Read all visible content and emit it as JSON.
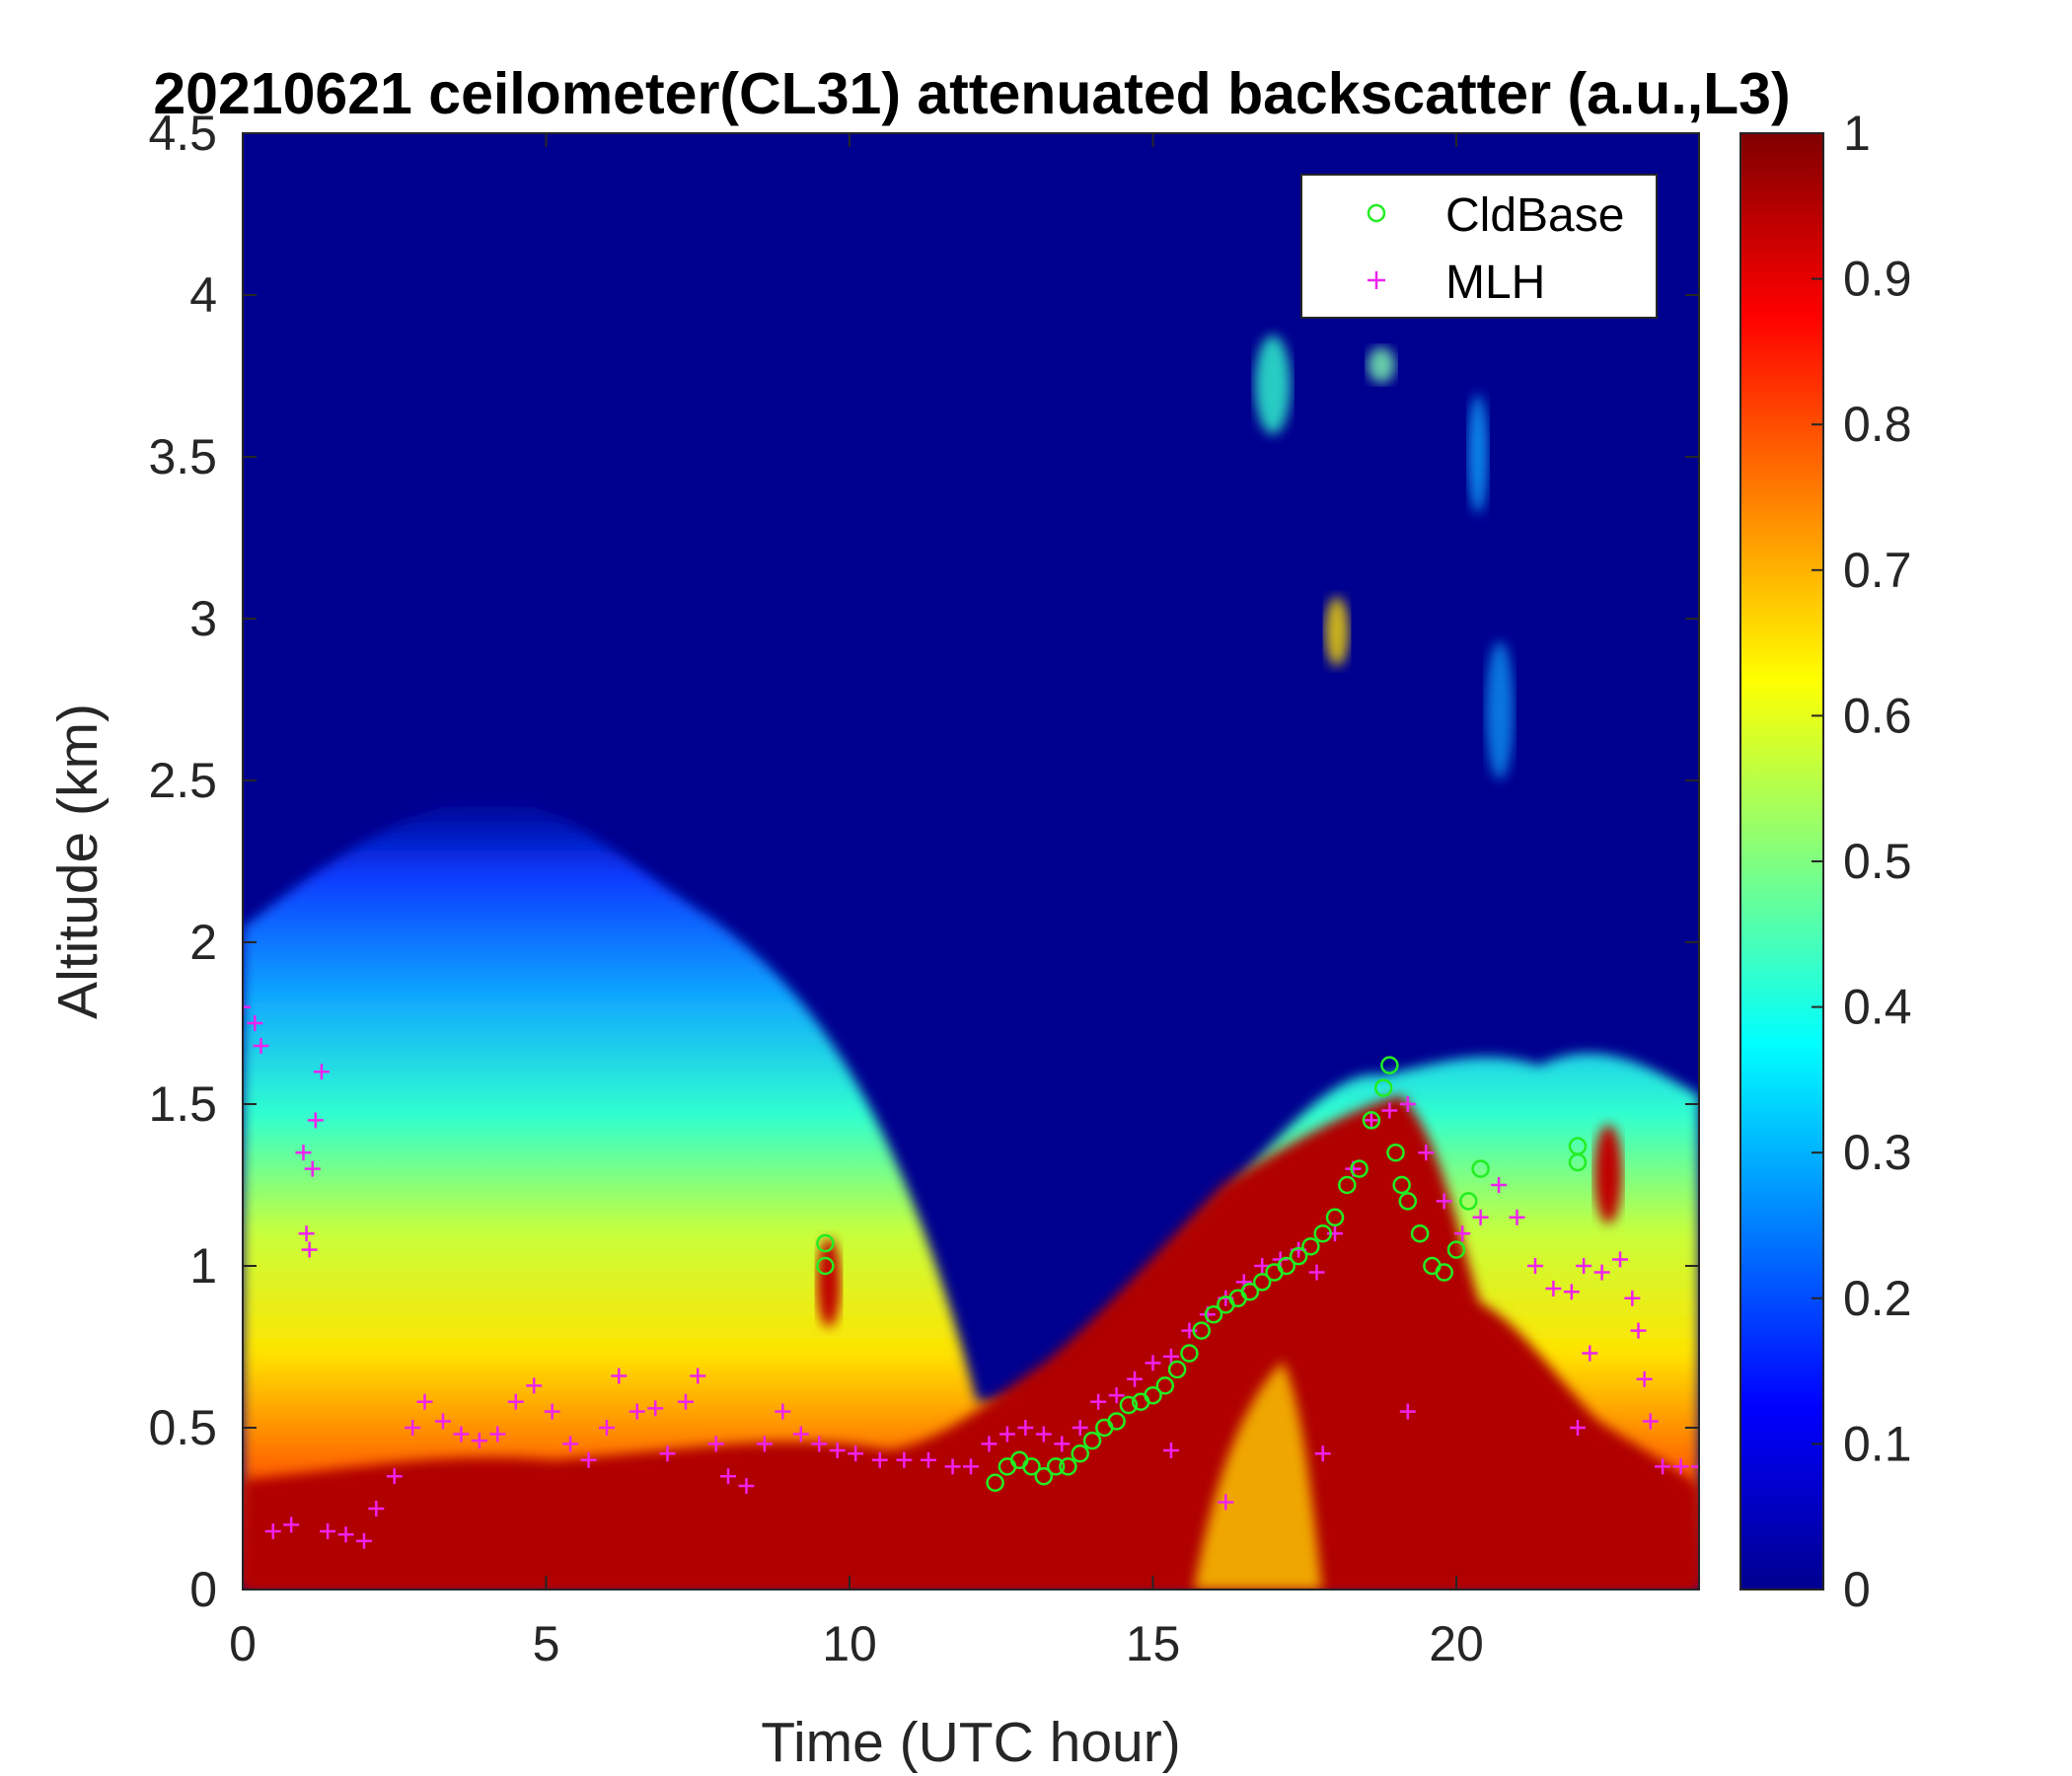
{
  "chart_data": {
    "type": "heatmap",
    "title": "20210621 ceilometer(CL31) attenuated backscatter (a.u.,L3)",
    "xlabel": "Time (UTC hour)",
    "ylabel": "Altitude (km)",
    "xlim": [
      0,
      24
    ],
    "ylim": [
      0,
      4.5
    ],
    "x_ticks": [
      "0",
      "5",
      "10",
      "15",
      "20"
    ],
    "y_ticks": [
      "0",
      "0.5",
      "1",
      "1.5",
      "2",
      "2.5",
      "3",
      "3.5",
      "4",
      "4.5"
    ],
    "colorbar": {
      "colormap": "jet",
      "range": [
        0,
        1
      ],
      "ticks": [
        "0",
        "0.1",
        "0.2",
        "0.3",
        "0.4",
        "0.5",
        "0.6",
        "0.7",
        "0.8",
        "0.9",
        "1"
      ]
    },
    "legend_position": "top-right",
    "series": [
      {
        "name": "CldBase",
        "marker": "circle",
        "color": "#22ee22",
        "points": [
          [
            9.6,
            1.0
          ],
          [
            9.6,
            1.07
          ],
          [
            12.4,
            0.33
          ],
          [
            12.6,
            0.38
          ],
          [
            12.8,
            0.4
          ],
          [
            13.0,
            0.38
          ],
          [
            13.2,
            0.35
          ],
          [
            13.4,
            0.38
          ],
          [
            13.6,
            0.38
          ],
          [
            13.8,
            0.42
          ],
          [
            14.0,
            0.46
          ],
          [
            14.2,
            0.5
          ],
          [
            14.4,
            0.52
          ],
          [
            14.6,
            0.57
          ],
          [
            14.8,
            0.58
          ],
          [
            15.0,
            0.6
          ],
          [
            15.2,
            0.63
          ],
          [
            15.4,
            0.68
          ],
          [
            15.6,
            0.73
          ],
          [
            15.8,
            0.8
          ],
          [
            16.0,
            0.85
          ],
          [
            16.2,
            0.88
          ],
          [
            16.4,
            0.9
          ],
          [
            16.6,
            0.92
          ],
          [
            16.8,
            0.95
          ],
          [
            17.0,
            0.98
          ],
          [
            17.2,
            1.0
          ],
          [
            17.4,
            1.03
          ],
          [
            17.6,
            1.06
          ],
          [
            17.8,
            1.1
          ],
          [
            18.0,
            1.15
          ],
          [
            18.2,
            1.25
          ],
          [
            18.4,
            1.3
          ],
          [
            18.6,
            1.45
          ],
          [
            18.8,
            1.55
          ],
          [
            18.9,
            1.62
          ],
          [
            19.0,
            1.35
          ],
          [
            19.1,
            1.25
          ],
          [
            19.2,
            1.2
          ],
          [
            19.4,
            1.1
          ],
          [
            19.6,
            1.0
          ],
          [
            19.8,
            0.98
          ],
          [
            20.0,
            1.05
          ],
          [
            20.2,
            1.2
          ],
          [
            20.4,
            1.3
          ],
          [
            22.0,
            1.32
          ],
          [
            22.0,
            1.37
          ]
        ]
      },
      {
        "name": "MLH",
        "marker": "plus",
        "color": "#ee22ee",
        "points": [
          [
            0.0,
            1.8
          ],
          [
            0.2,
            1.75
          ],
          [
            0.3,
            1.68
          ],
          [
            0.5,
            0.18
          ],
          [
            0.8,
            0.2
          ],
          [
            1.0,
            1.35
          ],
          [
            1.05,
            1.1
          ],
          [
            1.1,
            1.05
          ],
          [
            1.15,
            1.3
          ],
          [
            1.2,
            1.45
          ],
          [
            1.3,
            1.6
          ],
          [
            1.4,
            0.18
          ],
          [
            1.7,
            0.17
          ],
          [
            2.0,
            0.15
          ],
          [
            2.2,
            0.25
          ],
          [
            2.5,
            0.35
          ],
          [
            2.8,
            0.5
          ],
          [
            3.0,
            0.58
          ],
          [
            3.3,
            0.52
          ],
          [
            3.6,
            0.48
          ],
          [
            3.9,
            0.46
          ],
          [
            4.2,
            0.48
          ],
          [
            4.5,
            0.58
          ],
          [
            4.8,
            0.63
          ],
          [
            5.1,
            0.55
          ],
          [
            5.4,
            0.45
          ],
          [
            5.7,
            0.4
          ],
          [
            6.0,
            0.5
          ],
          [
            6.2,
            0.66
          ],
          [
            6.5,
            0.55
          ],
          [
            6.8,
            0.56
          ],
          [
            7.0,
            0.42
          ],
          [
            7.3,
            0.58
          ],
          [
            7.5,
            0.66
          ],
          [
            7.8,
            0.45
          ],
          [
            8.0,
            0.35
          ],
          [
            8.3,
            0.32
          ],
          [
            8.6,
            0.45
          ],
          [
            8.9,
            0.55
          ],
          [
            9.2,
            0.48
          ],
          [
            9.5,
            0.45
          ],
          [
            9.8,
            0.43
          ],
          [
            10.1,
            0.42
          ],
          [
            10.5,
            0.4
          ],
          [
            10.9,
            0.4
          ],
          [
            11.3,
            0.4
          ],
          [
            11.7,
            0.38
          ],
          [
            12.0,
            0.38
          ],
          [
            12.3,
            0.45
          ],
          [
            12.6,
            0.48
          ],
          [
            12.9,
            0.5
          ],
          [
            13.2,
            0.48
          ],
          [
            13.5,
            0.45
          ],
          [
            13.8,
            0.5
          ],
          [
            14.1,
            0.58
          ],
          [
            14.4,
            0.6
          ],
          [
            14.7,
            0.65
          ],
          [
            15.0,
            0.7
          ],
          [
            15.3,
            0.72
          ],
          [
            15.6,
            0.8
          ],
          [
            15.9,
            0.85
          ],
          [
            16.2,
            0.9
          ],
          [
            16.5,
            0.95
          ],
          [
            16.8,
            1.0
          ],
          [
            17.1,
            1.02
          ],
          [
            17.4,
            1.05
          ],
          [
            17.7,
            0.98
          ],
          [
            18.0,
            1.1
          ],
          [
            18.3,
            1.3
          ],
          [
            18.6,
            1.45
          ],
          [
            18.9,
            1.48
          ],
          [
            19.2,
            1.5
          ],
          [
            19.5,
            1.35
          ],
          [
            19.8,
            1.2
          ],
          [
            20.1,
            1.1
          ],
          [
            20.4,
            1.15
          ],
          [
            20.7,
            1.25
          ],
          [
            21.0,
            1.15
          ],
          [
            21.3,
            1.0
          ],
          [
            21.6,
            0.93
          ],
          [
            21.9,
            0.92
          ],
          [
            22.1,
            1.0
          ],
          [
            22.4,
            0.98
          ],
          [
            22.7,
            1.02
          ],
          [
            22.9,
            0.9
          ],
          [
            23.0,
            0.8
          ],
          [
            23.1,
            0.65
          ],
          [
            23.2,
            0.52
          ],
          [
            23.4,
            0.38
          ],
          [
            23.7,
            0.38
          ],
          [
            24.0,
            0.38
          ],
          [
            16.2,
            0.27
          ],
          [
            17.8,
            0.42
          ],
          [
            19.2,
            0.55
          ],
          [
            22.2,
            0.73
          ],
          [
            22.0,
            0.5
          ],
          [
            15.3,
            0.43
          ]
        ]
      }
    ]
  }
}
